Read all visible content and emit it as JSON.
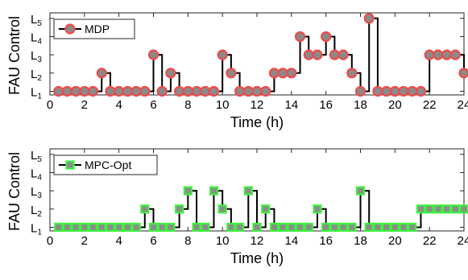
{
  "chart_data": [
    {
      "type": "line",
      "series": [
        {
          "name": "MDP",
          "marker": "circle",
          "marker_face": "#f04a4a",
          "marker_edge": "#8a8a8a",
          "x": [
            0.5,
            1,
            1.5,
            2,
            2.5,
            3,
            3.5,
            4,
            4.5,
            5,
            5.5,
            6,
            6.5,
            7,
            7.5,
            8,
            8.5,
            9,
            9.5,
            10,
            10.5,
            11,
            11.5,
            12,
            12.5,
            13,
            13.5,
            14,
            14.5,
            15,
            15.5,
            16,
            16.5,
            17,
            17.5,
            18,
            18.5,
            19,
            19.5,
            20,
            20.5,
            21,
            21.5,
            22,
            22.5,
            23,
            23.5,
            24
          ],
          "y": [
            1,
            1,
            1,
            1,
            1,
            2,
            1,
            1,
            1,
            1,
            1,
            3,
            1,
            2,
            1,
            1,
            1,
            1,
            1,
            3,
            2,
            1,
            1,
            1,
            1,
            2,
            2,
            2,
            4,
            3,
            3,
            4,
            3,
            3,
            2,
            1,
            5,
            1,
            1,
            1,
            1,
            1,
            1,
            3,
            3,
            3,
            3,
            2
          ]
        }
      ],
      "xlabel": "Time (h)",
      "ylabel": "FAU Control",
      "xticks": [
        "0",
        "2",
        "4",
        "6",
        "8",
        "10",
        "12",
        "14",
        "16",
        "18",
        "20",
        "22",
        "24"
      ],
      "yticks": [
        {
          "base": "L",
          "sub": "1"
        },
        {
          "base": "L",
          "sub": "2"
        },
        {
          "base": "L",
          "sub": "3"
        },
        {
          "base": "L",
          "sub": "4"
        },
        {
          "base": "L",
          "sub": "5"
        }
      ],
      "xlim": [
        0,
        24
      ],
      "ylim": [
        0.8,
        5.3
      ],
      "legend": "top-left",
      "grid": false,
      "colors": {
        "step": "#000000",
        "face": "#f04a4a",
        "edge": "#8a8a8a"
      }
    },
    {
      "type": "line",
      "series": [
        {
          "name": "MPC-Opt",
          "marker": "square",
          "marker_face": "#8c8c8c",
          "marker_edge": "#3df03d",
          "x": [
            0.5,
            1,
            1.5,
            2,
            2.5,
            3,
            3.5,
            4,
            4.5,
            5,
            5.5,
            6,
            6.5,
            7,
            7.5,
            8,
            8.5,
            9,
            9.5,
            10,
            10.5,
            11,
            11.5,
            12,
            12.5,
            13,
            13.5,
            14,
            14.5,
            15,
            15.5,
            16,
            16.5,
            17,
            17.5,
            18,
            18.5,
            19,
            19.5,
            20,
            20.5,
            21,
            21.5,
            22,
            22.5,
            23,
            23.5,
            24
          ],
          "y": [
            1,
            1,
            1,
            1,
            1,
            1,
            1,
            1,
            1,
            1,
            2,
            1,
            1,
            1,
            2,
            3,
            1,
            1,
            3,
            2,
            1,
            1,
            3,
            1,
            2,
            1,
            1,
            1,
            1,
            1,
            2,
            1,
            1,
            1,
            1,
            3,
            1,
            1,
            1,
            1,
            1,
            1,
            2,
            2,
            2,
            2,
            2,
            2
          ]
        }
      ],
      "xlabel": "Time (h)",
      "ylabel": "FAU Control",
      "xticks": [
        "0",
        "2",
        "4",
        "6",
        "8",
        "10",
        "12",
        "14",
        "16",
        "18",
        "20",
        "22",
        "24"
      ],
      "yticks": [
        {
          "base": "L",
          "sub": "1"
        },
        {
          "base": "L",
          "sub": "2"
        },
        {
          "base": "L",
          "sub": "3"
        },
        {
          "base": "L",
          "sub": "4"
        },
        {
          "base": "L",
          "sub": "5"
        }
      ],
      "xlim": [
        0,
        24
      ],
      "ylim": [
        0.8,
        5.3
      ],
      "legend": "top-left",
      "grid": false,
      "colors": {
        "step": "#000000",
        "face": "#8c8c8c",
        "edge": "#3df03d"
      }
    }
  ]
}
